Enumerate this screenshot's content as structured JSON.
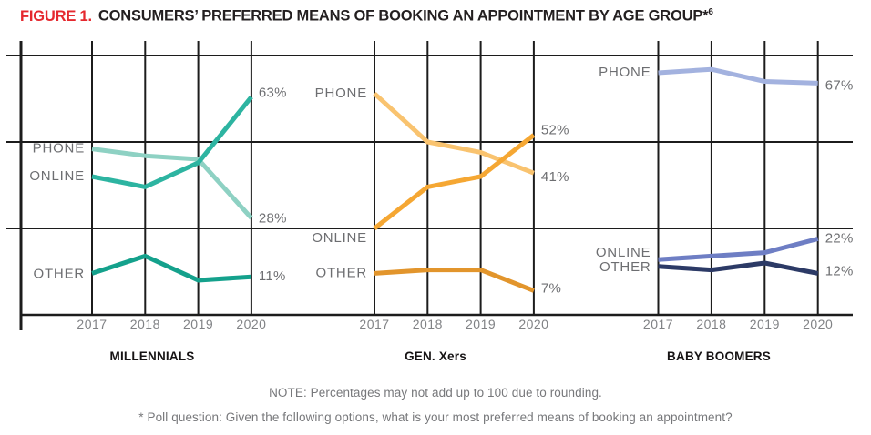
{
  "header": {
    "figure_label": "FIGURE 1.",
    "title": "CONSUMERS’ PREFERRED MEANS OF BOOKING AN APPOINTMENT BY AGE GROUP*",
    "title_superscript": "6"
  },
  "colors": {
    "figure_label_red": "#e5282e",
    "title_black": "#231f20",
    "grid_black": "#1c1c1c",
    "label_gray": "#6d6e71",
    "year_gray": "#808285",
    "note_gray": "#77787b"
  },
  "chart_data": [
    {
      "type": "line",
      "title": "MILLENNIALS",
      "x": [
        "2017",
        "2018",
        "2019",
        "2020"
      ],
      "ylim": [
        0,
        79
      ],
      "gridlines_pct": [
        25,
        50,
        75
      ],
      "grid": true,
      "legend_position": "inline-left",
      "layout": {
        "x_start": 101,
        "x_step": 58.3
      },
      "series": [
        {
          "name": "PHONE",
          "color": "#8ed1c3",
          "values": [
            48,
            46,
            45,
            28
          ],
          "end_label": "28%",
          "label_dy": 0,
          "end_label_dy": 1
        },
        {
          "name": "ONLINE",
          "color": "#2db4a1",
          "values": [
            40,
            37,
            44,
            63
          ],
          "end_label": "63%",
          "label_dy": 0,
          "end_label_dy": -4
        },
        {
          "name": "OTHER",
          "color": "#14a18c",
          "values": [
            12,
            17,
            10,
            11
          ],
          "end_label": "11%",
          "label_dy": 1,
          "end_label_dy": 0
        }
      ]
    },
    {
      "type": "line",
      "title": "GEN. Xers",
      "x": [
        "2017",
        "2018",
        "2019",
        "2020"
      ],
      "ylim": [
        0,
        79
      ],
      "gridlines_pct": [
        25,
        50,
        75
      ],
      "grid": true,
      "legend_position": "inline-left",
      "layout": {
        "x_start": 411,
        "x_step": 58.3
      },
      "series": [
        {
          "name": "PHONE",
          "color": "#f9c36f",
          "values": [
            64,
            50,
            47,
            41
          ],
          "end_label": "41%",
          "label_dy": 0,
          "end_label_dy": 5
        },
        {
          "name": "ONLINE",
          "color": "#f5a733",
          "values": [
            25,
            37,
            40,
            52
          ],
          "end_label": "52%",
          "label_dy": 11,
          "end_label_dy": -5
        },
        {
          "name": "OTHER",
          "color": "#e2952c",
          "values": [
            12,
            13,
            13,
            7
          ],
          "end_label": "7%",
          "label_dy": 0,
          "end_label_dy": -2
        }
      ]
    },
    {
      "type": "line",
      "title": "BABY BOOMERS",
      "x": [
        "2017",
        "2018",
        "2019",
        "2020"
      ],
      "ylim": [
        0,
        79
      ],
      "gridlines_pct": [
        25,
        50,
        75
      ],
      "grid": true,
      "legend_position": "inline-left",
      "layout": {
        "x_start": 722.5,
        "x_step": 58.4
      },
      "series": [
        {
          "name": "PHONE",
          "color": "#a3b2df",
          "values": [
            70,
            71,
            67.5,
            67
          ],
          "end_label": "67%",
          "label_dy": 0,
          "end_label_dy": 3
        },
        {
          "name": "ONLINE",
          "color": "#6e7ec4",
          "values": [
            16,
            17,
            18,
            22
          ],
          "end_label": "22%",
          "label_dy": -7,
          "end_label_dy": 0
        },
        {
          "name": "OTHER",
          "color": "#2c3a66",
          "values": [
            14,
            13,
            15,
            12
          ],
          "end_label": "12%",
          "label_dy": 1,
          "end_label_dy": -2
        }
      ]
    }
  ],
  "notes": {
    "line1": "NOTE: Percentages may not add up to 100 due to rounding.",
    "line2": "* Poll question: Given the following options, what is your most preferred means of booking an appointment?"
  }
}
